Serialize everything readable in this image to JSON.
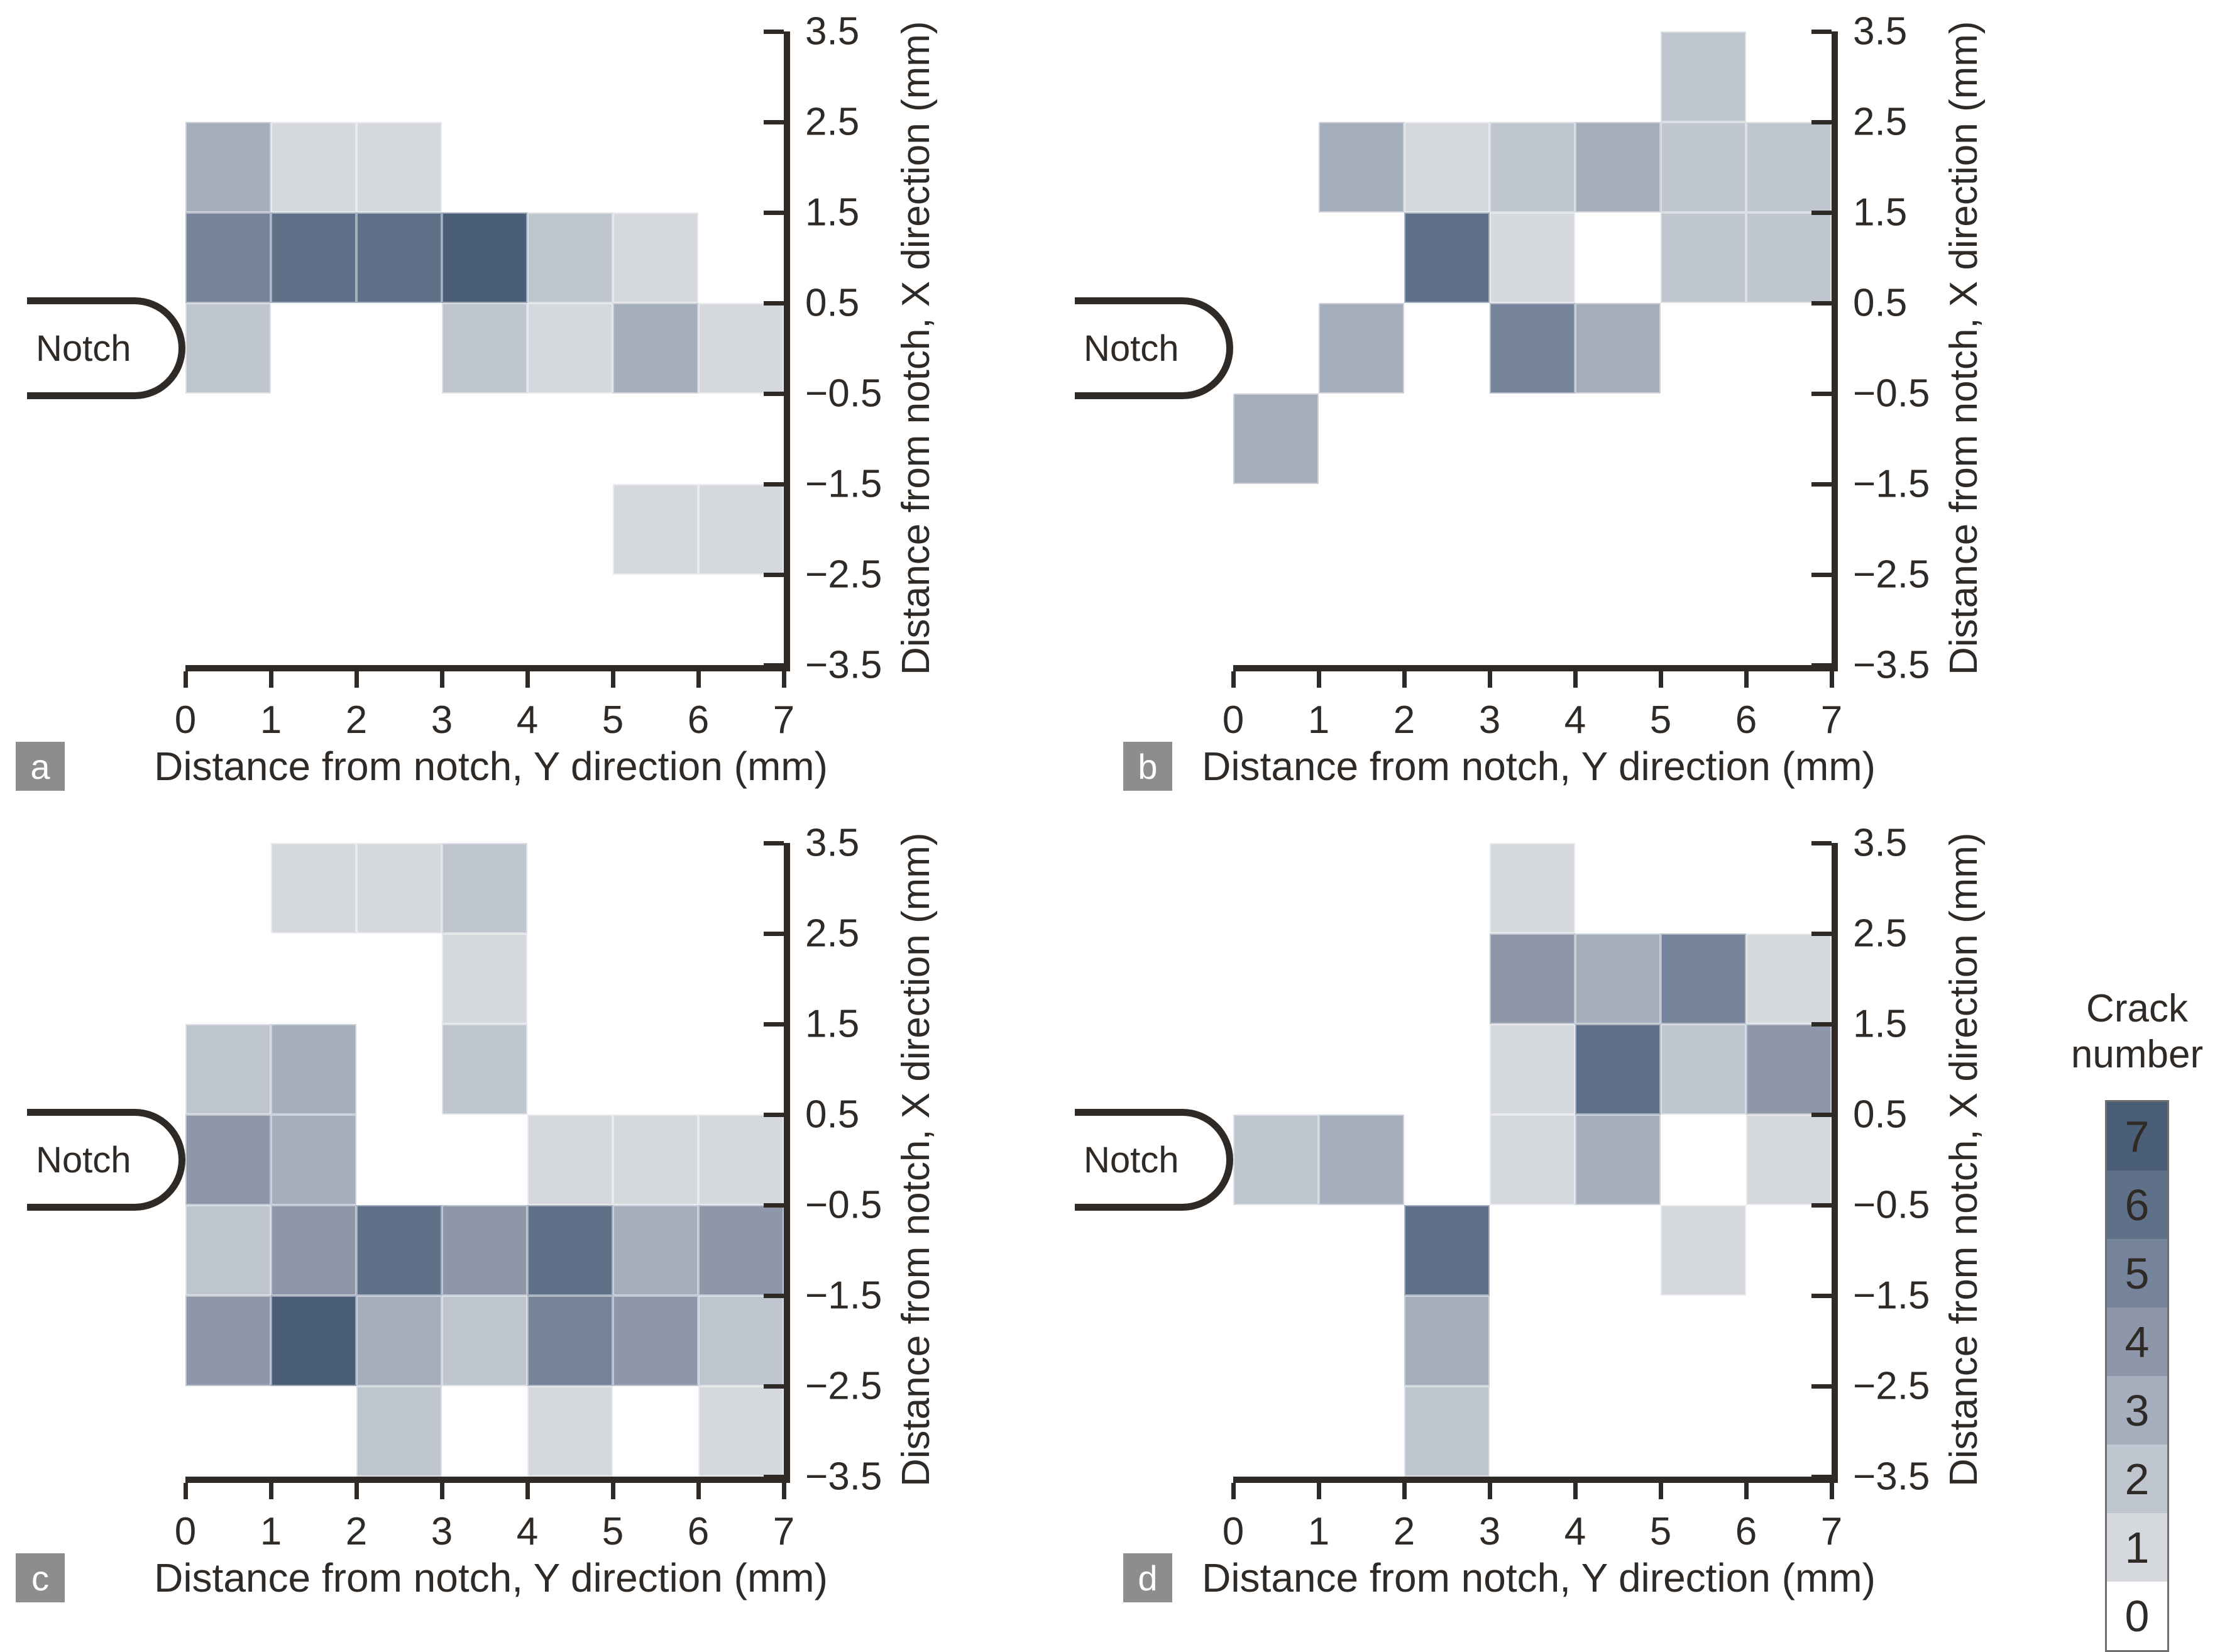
{
  "axes": {
    "xlabel": "Distance from notch, Y direction (mm)",
    "ylabel": "Distance from notch, X direction (mm)",
    "x_tick_labels": [
      "0",
      "1",
      "2",
      "3",
      "4",
      "5",
      "6",
      "7"
    ],
    "y_tick_labels": [
      "3.5",
      "2.5",
      "1.5",
      "0.5",
      "−0.5",
      "−1.5",
      "−2.5",
      "−3.5"
    ],
    "notch_label": "Notch"
  },
  "legend": {
    "title_line1": "Crack",
    "title_line2": "number",
    "values": [
      "7",
      "6",
      "5",
      "4",
      "3",
      "2",
      "1",
      "0"
    ]
  },
  "colors": {
    "ink": "#2f2a26",
    "panel_letter_bg": "#8d8d8d",
    "legend_border": "#6f6f6f",
    "value_0": "#ffffff",
    "value_1": "#d5d9de",
    "value_2": "#c0c6d0",
    "value_3": "#a5aebc",
    "value_4": "#8d97a9",
    "value_5": "#75839b",
    "value_6": "#5f7089",
    "value_7": "#4b5e78"
  },
  "chart_data": {
    "type": "heatmap",
    "title": "Crack number maps around notch",
    "xlabel": "Distance from notch, Y direction (mm)",
    "ylabel": "Distance from notch, X direction (mm)",
    "x_bin_edges_mm": [
      0,
      1,
      2,
      3,
      4,
      5,
      6,
      7
    ],
    "y_bin_edges_mm_top_to_bottom": [
      3.5,
      2.5,
      1.5,
      0.5,
      -0.5,
      -1.5,
      -2.5,
      -3.5
    ],
    "legend_title": "Crack number",
    "legend_values": [
      7,
      6,
      5,
      4,
      3,
      2,
      1,
      0
    ],
    "grid": false,
    "legend_position": "right",
    "panels": [
      {
        "letter": "a",
        "values_rows_top_to_bottom": [
          [
            0,
            0,
            0,
            0,
            0,
            0,
            0
          ],
          [
            3,
            1,
            1,
            0,
            0,
            0,
            0
          ],
          [
            5,
            6,
            6,
            7,
            2,
            1,
            0
          ],
          [
            2,
            0,
            0,
            2,
            1,
            3,
            1
          ],
          [
            0,
            0,
            0,
            0,
            0,
            0,
            0
          ],
          [
            0,
            0,
            0,
            0,
            0,
            1,
            1
          ],
          [
            0,
            0,
            0,
            0,
            0,
            0,
            0
          ]
        ]
      },
      {
        "letter": "b",
        "values_rows_top_to_bottom": [
          [
            0,
            0,
            0,
            0,
            0,
            2,
            0
          ],
          [
            0,
            3,
            1,
            2,
            3,
            2,
            2
          ],
          [
            0,
            0,
            6,
            1,
            0,
            2,
            2
          ],
          [
            0,
            3,
            0,
            5,
            3,
            0,
            0
          ],
          [
            3,
            0,
            0,
            0,
            0,
            0,
            0
          ],
          [
            0,
            0,
            0,
            0,
            0,
            0,
            0
          ],
          [
            0,
            0,
            0,
            0,
            0,
            0,
            0
          ]
        ]
      },
      {
        "letter": "c",
        "values_rows_top_to_bottom": [
          [
            0,
            1,
            1,
            2,
            0,
            0,
            0
          ],
          [
            0,
            0,
            0,
            1,
            0,
            0,
            0
          ],
          [
            2,
            3,
            0,
            2,
            0,
            0,
            0
          ],
          [
            4,
            3,
            0,
            0,
            1,
            1,
            1
          ],
          [
            2,
            4,
            6,
            4,
            6,
            3,
            4
          ],
          [
            4,
            7,
            3,
            2,
            5,
            4,
            2
          ],
          [
            0,
            0,
            2,
            0,
            1,
            0,
            1
          ]
        ]
      },
      {
        "letter": "d",
        "values_rows_top_to_bottom": [
          [
            0,
            0,
            0,
            1,
            0,
            0,
            0
          ],
          [
            0,
            0,
            0,
            4,
            3,
            5,
            1
          ],
          [
            0,
            0,
            0,
            1,
            6,
            2,
            4
          ],
          [
            2,
            3,
            0,
            1,
            3,
            0,
            1
          ],
          [
            0,
            0,
            6,
            0,
            0,
            1,
            0
          ],
          [
            0,
            0,
            3,
            0,
            0,
            0,
            0
          ],
          [
            0,
            0,
            2,
            0,
            0,
            0,
            0
          ]
        ]
      }
    ]
  }
}
